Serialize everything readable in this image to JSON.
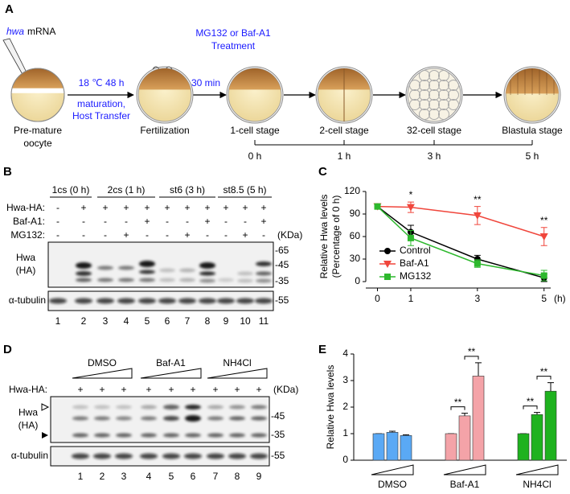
{
  "panel_a": {
    "label": "A",
    "injection": {
      "gene": "hwa",
      "molecule": "mRNA"
    },
    "transfer": [
      "18 ℃  48 h",
      "maturation,",
      "Host Transfer"
    ],
    "treatment": [
      "MG132 or Baf-A1",
      "Treatment"
    ],
    "delay": "30 min",
    "stages": [
      [
        "Pre-mature",
        "oocyte"
      ],
      [
        "Fertilization"
      ],
      [
        "1-cell stage"
      ],
      [
        "2-cell stage"
      ],
      [
        "32-cell stage"
      ],
      [
        "Blastula stage"
      ]
    ],
    "times": [
      "0 h",
      "1 h",
      "3 h",
      "5 h"
    ]
  },
  "panel_b": {
    "label": "B",
    "groups": [
      "1cs (0 h)",
      "2cs (1 h)",
      "st6 (3 h)",
      "st8.5 (5 h)"
    ],
    "rows": [
      {
        "name": "Hwa-HA:",
        "signs": [
          "-",
          "+",
          "+",
          "+",
          "+",
          "+",
          "+",
          "+",
          "+",
          "+",
          "+"
        ]
      },
      {
        "name": "Baf-A1:",
        "signs": [
          "-",
          "-",
          "-",
          "-",
          "+",
          "-",
          "-",
          "+",
          "-",
          "-",
          "+"
        ]
      },
      {
        "name": "MG132:",
        "signs": [
          "-",
          "-",
          "-",
          "+",
          "-",
          "-",
          "+",
          "-",
          "-",
          "+",
          "-"
        ]
      }
    ],
    "unit": "(KDa)",
    "hwa_blot": [
      "Hwa",
      "(HA)"
    ],
    "tubulin_blot": "α-tubulin",
    "hwa_markers": [
      "-65",
      "-45",
      "-35"
    ],
    "tubulin_marker": "-55",
    "lanes": [
      "1",
      "2",
      "3",
      "4",
      "5",
      "6",
      "7",
      "8",
      "9",
      "10",
      "11"
    ]
  },
  "panel_d": {
    "label": "D",
    "groups": [
      "DMSO",
      "Baf-A1",
      "NH4Cl"
    ],
    "row": {
      "name": "Hwa-HA:",
      "signs": [
        "+",
        "+",
        "+",
        "+",
        "+",
        "+",
        "+",
        "+",
        "+"
      ]
    },
    "unit": "(KDa)",
    "hwa_blot": [
      "Hwa",
      "(HA)"
    ],
    "tubulin_blot": "α-tubulin",
    "hwa_markers": [
      "-45",
      "-35"
    ],
    "tubulin_marker": "-55",
    "lanes": [
      "1",
      "2",
      "3",
      "4",
      "5",
      "6",
      "7",
      "8",
      "9"
    ]
  },
  "chart_data": [
    {
      "type": "line",
      "label": "C",
      "y_label": [
        "Relative Hwa levels",
        "(Percentage of 0 h)"
      ],
      "x_unit": "(h)",
      "x": [
        0,
        1,
        3,
        5
      ],
      "xlim": [
        -0.35,
        5.2
      ],
      "xticks": [
        0,
        1,
        3,
        5
      ],
      "ylim": [
        0,
        120
      ],
      "yticks": [
        0,
        30,
        60,
        90,
        120
      ],
      "series": [
        {
          "name": "Control",
          "color": "#000000",
          "marker": "circle",
          "values": [
            100,
            66,
            30,
            5
          ],
          "errors": [
            0,
            9,
            5,
            5
          ]
        },
        {
          "name": "Baf-A1",
          "color": "#f0463c",
          "marker": "triangle-down",
          "values": [
            100,
            99,
            88,
            60
          ],
          "errors": [
            0,
            7,
            12,
            12
          ]
        },
        {
          "name": "MG132",
          "color": "#2db82d",
          "marker": "square",
          "values": [
            100,
            58,
            24,
            8
          ],
          "errors": [
            0,
            10,
            5,
            7
          ]
        }
      ],
      "significance": [
        {
          "x": 1,
          "text": "*"
        },
        {
          "x": 3,
          "text": "**"
        },
        {
          "x": 5,
          "text": "**"
        }
      ]
    },
    {
      "type": "grouped-bar",
      "label": "E",
      "y_label": "Relative Hwa levels",
      "ylim": [
        0,
        4
      ],
      "yticks": [
        0,
        1,
        2,
        3,
        4
      ],
      "groups": [
        {
          "name": "DMSO",
          "color": "#5aa9f5",
          "values": [
            1,
            1.05,
            0.93
          ],
          "errors": [
            0,
            0.04,
            0.03
          ]
        },
        {
          "name": "Baf-A1",
          "color": "#f4a3a8",
          "values": [
            1,
            1.67,
            3.17
          ],
          "errors": [
            0,
            0.1,
            0.5
          ]
        },
        {
          "name": "NH4Cl",
          "color": "#1fb21f",
          "values": [
            1,
            1.72,
            2.6
          ],
          "errors": [
            0,
            0.08,
            0.32
          ]
        }
      ],
      "comparisons": [
        {
          "group": 1,
          "bars": [
            0,
            1
          ],
          "text": "**"
        },
        {
          "group": 1,
          "bars": [
            1,
            2
          ],
          "text": "**"
        },
        {
          "group": 2,
          "bars": [
            0,
            1
          ],
          "text": "**"
        },
        {
          "group": 2,
          "bars": [
            1,
            2
          ],
          "text": "**"
        }
      ]
    }
  ]
}
